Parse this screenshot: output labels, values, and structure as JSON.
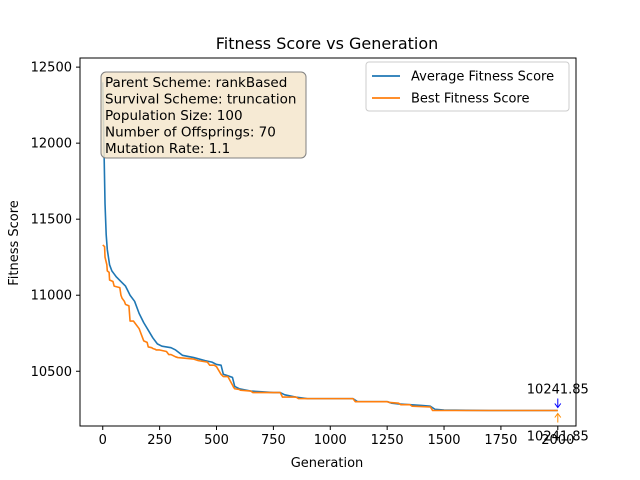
{
  "chart_data": {
    "type": "line",
    "title": "Fitness Score vs Generation",
    "xlabel": "Generation",
    "ylabel": "Fitness Score",
    "xlim": [
      -100,
      2080
    ],
    "ylim": [
      10140,
      12560
    ],
    "xticks": [
      0,
      250,
      500,
      750,
      1000,
      1250,
      1500,
      1750,
      2000
    ],
    "yticks": [
      10500,
      11000,
      11500,
      12000,
      12500
    ],
    "grid": false,
    "legend_position": "top-right",
    "series": [
      {
        "name": "Average Fitness Score",
        "color": "#1f77b4",
        "x": [
          0,
          5,
          10,
          15,
          20,
          30,
          40,
          50,
          60,
          80,
          100,
          120,
          140,
          160,
          180,
          200,
          220,
          240,
          260,
          280,
          300,
          320,
          350,
          400,
          450,
          480,
          500,
          520,
          530,
          550,
          570,
          580,
          600,
          650,
          700,
          750,
          780,
          800,
          850,
          900,
          1000,
          1100,
          1120,
          1200,
          1250,
          1270,
          1300,
          1350,
          1400,
          1440,
          1460,
          1500,
          1600,
          1700,
          1800,
          1900,
          2000
        ],
        "y": [
          12400,
          12000,
          11600,
          11400,
          11300,
          11200,
          11160,
          11140,
          11120,
          11090,
          11060,
          11000,
          10960,
          10880,
          10820,
          10770,
          10720,
          10680,
          10665,
          10660,
          10655,
          10640,
          10605,
          10590,
          10570,
          10560,
          10545,
          10540,
          10480,
          10470,
          10460,
          10400,
          10385,
          10370,
          10365,
          10360,
          10360,
          10345,
          10330,
          10320,
          10320,
          10320,
          10300,
          10300,
          10300,
          10290,
          10285,
          10280,
          10275,
          10270,
          10250,
          10245,
          10243,
          10242,
          10242,
          10242,
          10241.85
        ]
      },
      {
        "name": "Best Fitness Score",
        "color": "#ff7f0e",
        "x": [
          0,
          8,
          10,
          18,
          20,
          28,
          30,
          45,
          50,
          75,
          80,
          85,
          95,
          100,
          115,
          120,
          135,
          140,
          160,
          165,
          175,
          180,
          195,
          200,
          215,
          220,
          230,
          235,
          250,
          280,
          290,
          300,
          320,
          330,
          400,
          420,
          460,
          470,
          490,
          500,
          520,
          530,
          550,
          570,
          575,
          580,
          600,
          605,
          650,
          660,
          780,
          790,
          850,
          860,
          1100,
          1110,
          1250,
          1260,
          1300,
          1310,
          1350,
          1360,
          1440,
          1450,
          2000
        ],
        "y": [
          11330,
          11320,
          11250,
          11200,
          11160,
          11150,
          11100,
          11090,
          11060,
          11050,
          11000,
          10980,
          10960,
          10940,
          10930,
          10830,
          10830,
          10820,
          10780,
          10760,
          10720,
          10700,
          10690,
          10660,
          10655,
          10650,
          10645,
          10640,
          10640,
          10630,
          10610,
          10610,
          10595,
          10590,
          10580,
          10570,
          10560,
          10540,
          10540,
          10530,
          10480,
          10465,
          10465,
          10410,
          10395,
          10385,
          10380,
          10375,
          10370,
          10360,
          10360,
          10330,
          10330,
          10320,
          10320,
          10300,
          10300,
          10295,
          10290,
          10280,
          10280,
          10270,
          10265,
          10241.85,
          10241.85
        ]
      }
    ],
    "annotations": [
      {
        "text": "10241.85",
        "x": 2000,
        "y": 10241.85,
        "arrow_color": "#0000ff",
        "placement": "above"
      },
      {
        "text": "10241.85",
        "x": 2000,
        "y": 10241.85,
        "arrow_color": "#ff8c00",
        "placement": "below"
      }
    ],
    "info_box": {
      "lines": [
        "Parent Scheme: rankBased",
        "Survival Scheme: truncation",
        "Population Size: 100",
        "Number of Offsprings: 70",
        "Mutation Rate: 1.1"
      ],
      "background": "#f5e6cc",
      "border": "#808080"
    }
  }
}
